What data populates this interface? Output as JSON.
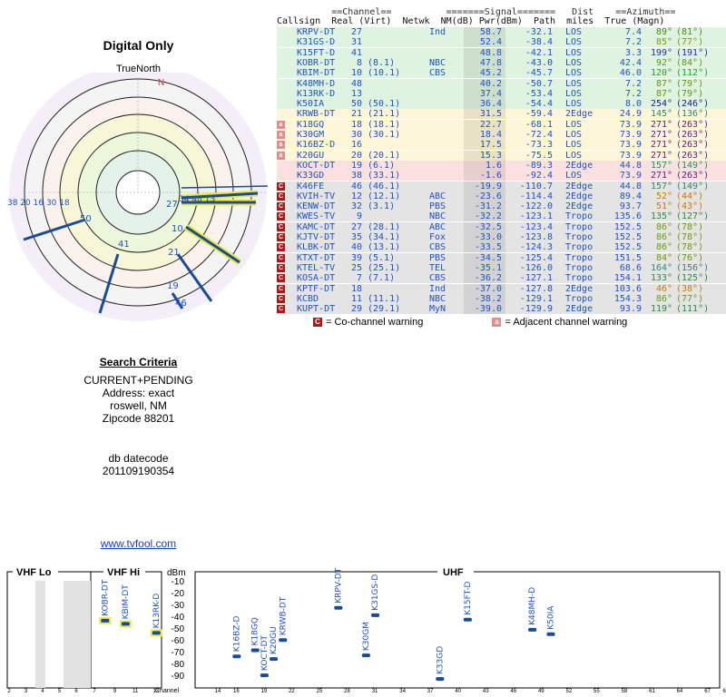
{
  "title": "Digital Only",
  "true_north": "TrueNorth",
  "north": "N",
  "polar": {
    "left_label": "38 20 16 30 18",
    "labels": [
      "27",
      "34 48 13",
      "8",
      "10",
      "21",
      "19",
      "46",
      "41",
      "50"
    ]
  },
  "criteria": {
    "header": "Search Criteria",
    "line1": "CURRENT+PENDING",
    "line2": "Address: exact",
    "line3": "roswell, NM",
    "line4": "Zipcode 88201",
    "db_label": "db datecode",
    "db_value": "201109190354"
  },
  "link": "www.tvfool.com",
  "table_headers": {
    "line1": "          ==Channel==          =======Signal=======   Dist    ==Azimuth==",
    "line2": "Callsign  Real (Virt)  Netwk  NM(dB) Pwr(dBm)  Path  miles  True (Magn)"
  },
  "table_rows": [
    {
      "call": "KRPV-DT",
      "real": "27",
      "virt": "",
      "net": "Ind",
      "nm": "58.7",
      "pwr": "-32.1",
      "path": "LOS",
      "dist": "7.4",
      "tru": "89°",
      "mag": "(81°)",
      "bg": "#dff4e0",
      "azc": "#4a8a1a",
      "warn": ""
    },
    {
      "call": "K31GS-D",
      "real": "31",
      "virt": "",
      "net": "",
      "nm": "52.4",
      "pwr": "-38.4",
      "path": "LOS",
      "dist": "7.2",
      "tru": "85°",
      "mag": "(77°)",
      "bg": "#dff4e0",
      "azc": "#7a9a10",
      "warn": ""
    },
    {
      "call": "K15FT-D",
      "real": "41",
      "virt": "",
      "net": "",
      "nm": "48.8",
      "pwr": "-42.1",
      "path": "LOS",
      "dist": "3.3",
      "tru": "199°",
      "mag": "(191°)",
      "bg": "#dff4e0",
      "azc": "#2a2aa8",
      "warn": ""
    },
    {
      "call": "KOBR-DT",
      "real": "8",
      "virt": "(8.1)",
      "net": "NBC",
      "nm": "47.8",
      "pwr": "-43.0",
      "path": "LOS",
      "dist": "42.4",
      "tru": "92°",
      "mag": "(84°)",
      "bg": "#dff4e0",
      "azc": "#5a9a10",
      "warn": ""
    },
    {
      "call": "KBIM-DT",
      "real": "10",
      "virt": "(10.1)",
      "net": "CBS",
      "nm": "45.2",
      "pwr": "-45.7",
      "path": "LOS",
      "dist": "46.0",
      "tru": "120°",
      "mag": "(112°)",
      "bg": "#dff4e0",
      "azc": "#2a9a30",
      "warn": ""
    },
    {
      "call": "K48MH-D",
      "real": "48",
      "virt": "",
      "net": "",
      "nm": "40.2",
      "pwr": "-50.7",
      "path": "LOS",
      "dist": "7.2",
      "tru": "87°",
      "mag": "(79°)",
      "bg": "#dff4e0",
      "azc": "#5a9a10",
      "warn": ""
    },
    {
      "call": "K13RK-D",
      "real": "13",
      "virt": "",
      "net": "",
      "nm": "37.4",
      "pwr": "-53.4",
      "path": "LOS",
      "dist": "7.2",
      "tru": "87°",
      "mag": "(79°)",
      "bg": "#dff4e0",
      "azc": "#5a9a10",
      "warn": ""
    },
    {
      "call": "K50IA",
      "real": "50",
      "virt": "(50.1)",
      "net": "",
      "nm": "36.4",
      "pwr": "-54.4",
      "path": "LOS",
      "dist": "8.0",
      "tru": "254°",
      "mag": "(246°)",
      "bg": "#dff4e0",
      "azc": "#1a1a90",
      "warn": ""
    },
    {
      "call": "KRWB-DT",
      "real": "21",
      "virt": "(21.1)",
      "net": "",
      "nm": "31.5",
      "pwr": "-59.4",
      "path": "2Edge",
      "dist": "24.9",
      "tru": "145°",
      "mag": "(136°)",
      "bg": "#fdf6d8",
      "azc": "#2a8a60",
      "warn": ""
    },
    {
      "call": "K18GQ",
      "real": "18",
      "virt": "(18.1)",
      "net": "",
      "nm": "22.7",
      "pwr": "-68.1",
      "path": "LOS",
      "dist": "73.9",
      "tru": "271°",
      "mag": "(263°)",
      "bg": "#fdf6d8",
      "azc": "#6a1a90",
      "warn": "adj"
    },
    {
      "call": "K30GM",
      "real": "30",
      "virt": "(30.1)",
      "net": "",
      "nm": "18.4",
      "pwr": "-72.4",
      "path": "LOS",
      "dist": "73.9",
      "tru": "271°",
      "mag": "(263°)",
      "bg": "#fdf6d8",
      "azc": "#6a1a90",
      "warn": "adj"
    },
    {
      "call": "K16BZ-D",
      "real": "16",
      "virt": "",
      "net": "",
      "nm": "17.5",
      "pwr": "-73.3",
      "path": "LOS",
      "dist": "73.9",
      "tru": "271°",
      "mag": "(263°)",
      "bg": "#fdf6d8",
      "azc": "#6a1a90",
      "warn": "adj"
    },
    {
      "call": "K20GU",
      "real": "20",
      "virt": "(20.1)",
      "net": "",
      "nm": "15.3",
      "pwr": "-75.5",
      "path": "LOS",
      "dist": "73.9",
      "tru": "271°",
      "mag": "(263°)",
      "bg": "#fdf6d8",
      "azc": "#6a1a90",
      "warn": "adj"
    },
    {
      "call": "KOCT-DT",
      "real": "19",
      "virt": "(6.1)",
      "net": "",
      "nm": "1.6",
      "pwr": "-89.3",
      "path": "2Edge",
      "dist": "44.8",
      "tru": "157°",
      "mag": "(149°)",
      "bg": "#fbe0e0",
      "azc": "#2a8a70",
      "warn": ""
    },
    {
      "call": "K33GD",
      "real": "38",
      "virt": "(33.1)",
      "net": "",
      "nm": "-1.6",
      "pwr": "-92.4",
      "path": "LOS",
      "dist": "73.9",
      "tru": "271°",
      "mag": "(263°)",
      "bg": "#fbe0e0",
      "azc": "#6a1a90",
      "warn": ""
    },
    {
      "call": "K46FE",
      "real": "46",
      "virt": "(46.1)",
      "net": "",
      "nm": "-19.9",
      "pwr": "-110.7",
      "path": "2Edge",
      "dist": "44.8",
      "tru": "157°",
      "mag": "(149°)",
      "bg": "#e4e4e4",
      "azc": "#2a8a70",
      "warn": "co"
    },
    {
      "call": "KVIH-TV",
      "real": "12",
      "virt": "(12.1)",
      "net": "ABC",
      "nm": "-23.6",
      "pwr": "-114.4",
      "path": "2Edge",
      "dist": "89.4",
      "tru": "52°",
      "mag": "(44°)",
      "bg": "#e4e4e4",
      "azc": "#c87a10",
      "warn": "co"
    },
    {
      "call": "KENW-DT",
      "real": "32",
      "virt": "(3.1)",
      "net": "PBS",
      "nm": "-31.2",
      "pwr": "-122.0",
      "path": "2Edge",
      "dist": "93.7",
      "tru": "51°",
      "mag": "(43°)",
      "bg": "#e4e4e4",
      "azc": "#c87a10",
      "warn": "co"
    },
    {
      "call": "KWES-TV",
      "real": "9",
      "virt": "",
      "net": "NBC",
      "nm": "-32.2",
      "pwr": "-123.1",
      "path": "Tropo",
      "dist": "135.6",
      "tru": "135°",
      "mag": "(127°)",
      "bg": "#e4e4e4",
      "azc": "#2a8a40",
      "warn": "co"
    },
    {
      "call": "KAMC-DT",
      "real": "27",
      "virt": "(28.1)",
      "net": "ABC",
      "nm": "-32.5",
      "pwr": "-123.4",
      "path": "Tropo",
      "dist": "152.5",
      "tru": "86°",
      "mag": "(78°)",
      "bg": "#e4e4e4",
      "azc": "#6a9a10",
      "warn": "co"
    },
    {
      "call": "KJTV-DT",
      "real": "35",
      "virt": "(34.1)",
      "net": "Fox",
      "nm": "-33.0",
      "pwr": "-123.8",
      "path": "Tropo",
      "dist": "152.5",
      "tru": "86°",
      "mag": "(78°)",
      "bg": "#e4e4e4",
      "azc": "#6a9a10",
      "warn": "co"
    },
    {
      "call": "KLBK-DT",
      "real": "40",
      "virt": "(13.1)",
      "net": "CBS",
      "nm": "-33.5",
      "pwr": "-124.3",
      "path": "Tropo",
      "dist": "152.5",
      "tru": "86°",
      "mag": "(78°)",
      "bg": "#e4e4e4",
      "azc": "#6a9a10",
      "warn": "co"
    },
    {
      "call": "KTXT-DT",
      "real": "39",
      "virt": "(5.1)",
      "net": "PBS",
      "nm": "-34.5",
      "pwr": "-125.4",
      "path": "Tropo",
      "dist": "151.5",
      "tru": "84°",
      "mag": "(76°)",
      "bg": "#e4e4e4",
      "azc": "#6a9a10",
      "warn": "co"
    },
    {
      "call": "KTEL-TV",
      "real": "25",
      "virt": "(25.1)",
      "net": "TEL",
      "nm": "-35.1",
      "pwr": "-126.0",
      "path": "Tropo",
      "dist": "68.6",
      "tru": "164°",
      "mag": "(156°)",
      "bg": "#e4e4e4",
      "azc": "#2a8a70",
      "warn": "co"
    },
    {
      "call": "KOSA-DT",
      "real": "7",
      "virt": "(7.1)",
      "net": "CBS",
      "nm": "-36.2",
      "pwr": "-127.1",
      "path": "Tropo",
      "dist": "154.1",
      "tru": "133°",
      "mag": "(125°)",
      "bg": "#e4e4e4",
      "azc": "#2a8a40",
      "warn": "co"
    },
    {
      "call": "KPTF-DT",
      "real": "18",
      "virt": "",
      "net": "Ind",
      "nm": "-37.0",
      "pwr": "-127.8",
      "path": "2Edge",
      "dist": "103.6",
      "tru": "46°",
      "mag": "(38°)",
      "bg": "#e4e4e4",
      "azc": "#c87a10",
      "warn": "co"
    },
    {
      "call": "KCBD",
      "real": "11",
      "virt": "(11.1)",
      "net": "NBC",
      "nm": "-38.2",
      "pwr": "-129.1",
      "path": "Tropo",
      "dist": "154.3",
      "tru": "86°",
      "mag": "(77°)",
      "bg": "#e4e4e4",
      "azc": "#6a9a10",
      "warn": "co"
    },
    {
      "call": "KUPT-DT",
      "real": "29",
      "virt": "(29.1)",
      "net": "MyN",
      "nm": "-39.0",
      "pwr": "-129.9",
      "path": "2Edge",
      "dist": "93.9",
      "tru": "119°",
      "mag": "(111°)",
      "bg": "#e4e4e4",
      "azc": "#2a8a40",
      "warn": "co"
    }
  ],
  "legend": {
    "co_label": "= Co-channel warning",
    "adj_label": "= Adjacent channel warning",
    "co_mark": "C",
    "adj_mark": "a"
  },
  "spectrum": {
    "vhf_lo": "VHF Lo",
    "vhf_hi": "VHF Hi",
    "uhf": "UHF",
    "dbm": "dBm",
    "channel_label": "Channel",
    "db_ticks": [
      "-10",
      "-20",
      "-30",
      "-40",
      "-50",
      "-60",
      "-70",
      "-80",
      "-90"
    ],
    "vhf_lo_channels": [
      "2",
      "3",
      "4",
      "5",
      "6"
    ],
    "vhf_hi_channels": [
      "7",
      "9",
      "11",
      "13"
    ],
    "uhf_channels": [
      "14",
      "16",
      "19",
      "22",
      "25",
      "28",
      "31",
      "34",
      "37",
      "40",
      "43",
      "46",
      "49",
      "52",
      "55",
      "58",
      "61",
      "64",
      "67",
      "69"
    ],
    "stations": [
      {
        "call": "KOBR-DT",
        "ch": 8,
        "dbm": -43,
        "hl": true
      },
      {
        "call": "KBIM-DT",
        "ch": 10,
        "dbm": -45.7,
        "hl": true
      },
      {
        "call": "K13RK-D",
        "ch": 13,
        "dbm": -53.4,
        "hl": true
      },
      {
        "call": "K16BZ-D",
        "ch": 16,
        "dbm": -73.3,
        "hl": false
      },
      {
        "call": "K18GQ",
        "ch": 18,
        "dbm": -68.1,
        "hl": false
      },
      {
        "call": "KOCT-DT",
        "ch": 19,
        "dbm": -89.3,
        "hl": false
      },
      {
        "call": "K20GU",
        "ch": 20,
        "dbm": -75.5,
        "hl": false
      },
      {
        "call": "KRWB-DT",
        "ch": 21,
        "dbm": -59.4,
        "hl": false
      },
      {
        "call": "KRPV-DT",
        "ch": 27,
        "dbm": -32.1,
        "hl": false
      },
      {
        "call": "K30GM",
        "ch": 30,
        "dbm": -72.4,
        "hl": false
      },
      {
        "call": "K31GS-D",
        "ch": 31,
        "dbm": -38.4,
        "hl": false
      },
      {
        "call": "K33GD",
        "ch": 38,
        "dbm": -92.4,
        "hl": false
      },
      {
        "call": "K15FT-D",
        "ch": 41,
        "dbm": -42.1,
        "hl": false
      },
      {
        "call": "K48MH-D",
        "ch": 48,
        "dbm": -50.7,
        "hl": false
      },
      {
        "call": "K50IA",
        "ch": 50,
        "dbm": -54.4,
        "hl": false
      }
    ]
  }
}
